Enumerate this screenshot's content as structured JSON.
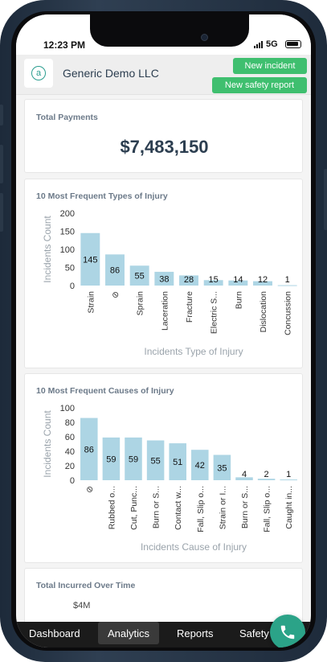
{
  "status": {
    "time": "12:23 PM",
    "network": "5G"
  },
  "header": {
    "company": "Generic Demo LLC",
    "new_incident_label": "New incident",
    "new_safety_report_label": "New safety report"
  },
  "total_payments": {
    "title": "Total Payments",
    "value": "$7,483,150"
  },
  "chart_data": [
    {
      "type": "bar",
      "title": "10 Most Frequent Types of Injury",
      "categories": [
        "Strain",
        "⊘",
        "Sprain",
        "Laceration",
        "Fracture",
        "Electric S...",
        "Burn",
        "Dislocation",
        "Concussion"
      ],
      "values": [
        145,
        86,
        55,
        38,
        28,
        15,
        14,
        12,
        1
      ],
      "xlabel": "Incidents Type of Injury",
      "ylabel": "Incidents Count",
      "ylim": [
        0,
        200
      ],
      "yticks": [
        0,
        50,
        100,
        150,
        200
      ],
      "color": "#add5e4"
    },
    {
      "type": "bar",
      "title": "10 Most Frequent Causes of Injury",
      "categories": [
        "⊘",
        "Rubbed o...",
        "Cut, Punc...",
        "Burn or S...",
        "Contact w...",
        "Fall, Slip o...",
        "Strain or I...",
        "Burn or S...",
        "Fall, Slip o...",
        "Caught in..."
      ],
      "values": [
        86,
        59,
        59,
        55,
        51,
        42,
        35,
        4,
        2,
        1
      ],
      "xlabel": "Incidents Cause of Injury",
      "ylabel": "Incidents Count",
      "ylim": [
        0,
        100
      ],
      "yticks": [
        0,
        20,
        40,
        60,
        80,
        100
      ],
      "color": "#add5e4"
    }
  ],
  "incurred": {
    "title": "Total Incurred Over Time",
    "first_tick": "$4M"
  },
  "nav": {
    "dashboard": "Dashboard",
    "analytics": "Analytics",
    "reports": "Reports",
    "safety": "Safety"
  },
  "icons": {
    "fab": "phone-icon",
    "logo": "at-sign-logo"
  }
}
